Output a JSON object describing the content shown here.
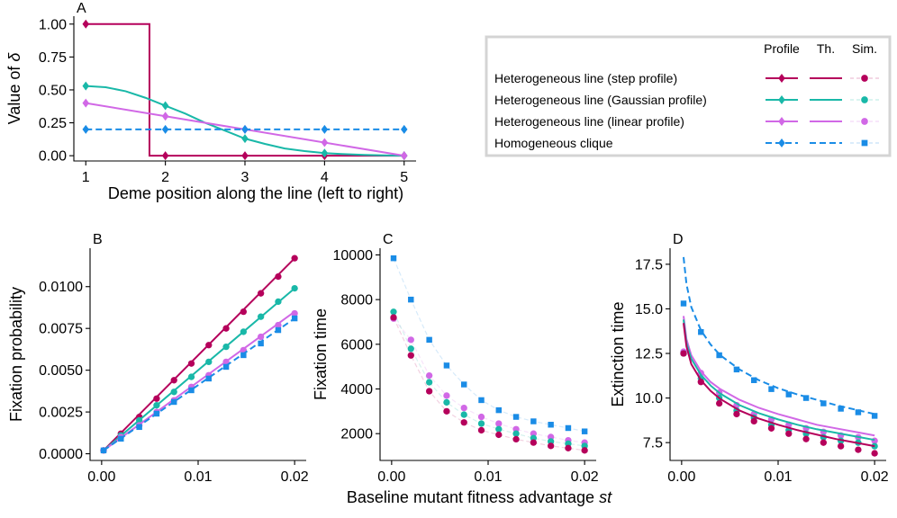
{
  "figure": {
    "shared_xlabel_prefix": "Baseline mutant fitness advantage ",
    "shared_xlabel_var": "st"
  },
  "legend": {
    "headers": [
      "Profile",
      "Th.",
      "Sim."
    ],
    "entries": [
      {
        "label": "Heterogeneous line (step profile)",
        "color": "#b5005b",
        "dash": "solid",
        "profile_marker": "diamond",
        "sim_marker": "circle"
      },
      {
        "label": "Heterogeneous line (Gaussian profile)",
        "color": "#19b8a8",
        "dash": "solid",
        "profile_marker": "diamond",
        "sim_marker": "circle"
      },
      {
        "label": "Heterogeneous line (linear profile)",
        "color": "#d168e6",
        "dash": "solid",
        "profile_marker": "diamond",
        "sim_marker": "circle"
      },
      {
        "label": "Homogeneous clique",
        "color": "#1a8ce6",
        "dash": "dashed",
        "profile_marker": "diamond",
        "sim_marker": "square"
      }
    ]
  },
  "chart_data": [
    {
      "panel": "A",
      "type": "line",
      "title": "",
      "xlabel": "Deme position along the line (left to right)",
      "ylabel": "Value of δ",
      "xlim": [
        0.85,
        5.15
      ],
      "ylim": [
        -0.04,
        1.06
      ],
      "xticks": [
        1,
        2,
        3,
        4,
        5
      ],
      "xtick_labels": [
        "1",
        "2",
        "3",
        "4",
        "5"
      ],
      "yticks": [
        0,
        0.25,
        0.5,
        0.75,
        1.0
      ],
      "ytick_labels": [
        "0.00",
        "0.25",
        "0.50",
        "0.75",
        "1.00"
      ],
      "series": [
        {
          "name": "Heterogeneous line (step profile)",
          "color": "#b5005b",
          "dash": "solid",
          "line_x": [
            1,
            1.8,
            1.8,
            5
          ],
          "line_y": [
            1.0,
            1.0,
            0.0,
            0.0
          ],
          "points_x": [
            1,
            2,
            3,
            4,
            5
          ],
          "points_y": [
            1.0,
            0.0,
            0.0,
            0.0,
            0.0
          ],
          "marker": "diamond"
        },
        {
          "name": "Heterogeneous line (Gaussian profile)",
          "color": "#19b8a8",
          "dash": "solid",
          "line_x": [
            1,
            1.25,
            1.5,
            1.75,
            2,
            2.25,
            2.5,
            2.75,
            3,
            3.25,
            3.5,
            3.75,
            4,
            4.25,
            4.5,
            4.75,
            5
          ],
          "line_y": [
            0.53,
            0.52,
            0.49,
            0.44,
            0.38,
            0.32,
            0.25,
            0.19,
            0.13,
            0.09,
            0.055,
            0.035,
            0.02,
            0.012,
            0.006,
            0.003,
            0.0
          ],
          "points_x": [
            1,
            2,
            3,
            4,
            5
          ],
          "points_y": [
            0.53,
            0.38,
            0.13,
            0.02,
            0.0
          ],
          "marker": "diamond"
        },
        {
          "name": "Heterogeneous line (linear profile)",
          "color": "#d168e6",
          "dash": "solid",
          "line_x": [
            1,
            5
          ],
          "line_y": [
            0.4,
            0.0
          ],
          "points_x": [
            1,
            2,
            3,
            4,
            5
          ],
          "points_y": [
            0.4,
            0.3,
            0.2,
            0.1,
            0.0
          ],
          "marker": "diamond"
        },
        {
          "name": "Homogeneous clique",
          "color": "#1a8ce6",
          "dash": "dashed",
          "line_x": [
            1,
            5
          ],
          "line_y": [
            0.2,
            0.2
          ],
          "points_x": [
            1,
            2,
            3,
            4,
            5
          ],
          "points_y": [
            0.2,
            0.2,
            0.2,
            0.2,
            0.2
          ],
          "marker": "diamond"
        }
      ]
    },
    {
      "panel": "B",
      "type": "line",
      "xlabel": "",
      "ylabel": "Fixation probability",
      "xlim": [
        -0.0012,
        0.0212
      ],
      "ylim": [
        -0.0004,
        0.0123
      ],
      "xticks": [
        0,
        0.01,
        0.02
      ],
      "xtick_labels": [
        "0.00",
        "0.01",
        "0.02"
      ],
      "yticks": [
        0,
        0.0025,
        0.005,
        0.0075,
        0.01
      ],
      "ytick_labels": [
        "0.0000",
        "0.0025",
        "0.0050",
        "0.0075",
        "0.0100"
      ],
      "sim_x": [
        0.0002,
        0.002,
        0.0039,
        0.0057,
        0.0075,
        0.0093,
        0.0111,
        0.0129,
        0.0147,
        0.0165,
        0.0183,
        0.02
      ],
      "series": [
        {
          "name": "Heterogeneous line (step profile)",
          "color": "#b5005b",
          "dash": "solid",
          "sim_marker": "circle",
          "theory_x": [
            0.0002,
            0.02
          ],
          "theory_y": [
            0.0002,
            0.0117
          ],
          "sim_y": [
            0.0002,
            0.0012,
            0.0022,
            0.0033,
            0.0044,
            0.0054,
            0.0065,
            0.0075,
            0.0085,
            0.0096,
            0.0106,
            0.0117
          ]
        },
        {
          "name": "Heterogeneous line (Gaussian profile)",
          "color": "#19b8a8",
          "dash": "solid",
          "sim_marker": "circle",
          "theory_x": [
            0.0002,
            0.02
          ],
          "theory_y": [
            0.0002,
            0.0099
          ],
          "sim_y": [
            0.0002,
            0.0011,
            0.002,
            0.0029,
            0.0037,
            0.0046,
            0.0055,
            0.0064,
            0.0073,
            0.0082,
            0.0091,
            0.0099
          ]
        },
        {
          "name": "Heterogeneous line (linear profile)",
          "color": "#d168e6",
          "dash": "solid",
          "sim_marker": "circle",
          "theory_x": [
            0.0002,
            0.02
          ],
          "theory_y": [
            0.0002,
            0.0085
          ],
          "sim_y": [
            0.0002,
            0.001,
            0.0017,
            0.0025,
            0.0032,
            0.004,
            0.0047,
            0.0055,
            0.0062,
            0.007,
            0.0077,
            0.0084
          ]
        },
        {
          "name": "Homogeneous clique",
          "color": "#1a8ce6",
          "dash": "dashed",
          "sim_marker": "square",
          "theory_x": [
            0.0002,
            0.02
          ],
          "theory_y": [
            0.0002,
            0.0081
          ],
          "sim_y": [
            0.0002,
            0.0009,
            0.0016,
            0.0024,
            0.0031,
            0.0038,
            0.0045,
            0.0052,
            0.0059,
            0.0066,
            0.0074,
            0.0081
          ]
        }
      ]
    },
    {
      "panel": "C",
      "type": "scatter",
      "xlabel": "",
      "ylabel": "Fixation time",
      "xlim": [
        -0.0012,
        0.0212
      ],
      "ylim": [
        800,
        10300
      ],
      "xticks": [
        0,
        0.01,
        0.02
      ],
      "xtick_labels": [
        "0.00",
        "0.01",
        "0.02"
      ],
      "yticks": [
        2000,
        4000,
        6000,
        8000,
        10000
      ],
      "ytick_labels": [
        "2000",
        "4000",
        "6000",
        "8000",
        "10000"
      ],
      "sim_x": [
        0.0002,
        0.002,
        0.0039,
        0.0057,
        0.0075,
        0.0093,
        0.0111,
        0.0129,
        0.0147,
        0.0165,
        0.0183,
        0.02
      ],
      "series": [
        {
          "name": "Homogeneous clique",
          "color": "#1a8ce6",
          "sim_marker": "square",
          "sim_y": [
            9850,
            8000,
            6200,
            5050,
            4200,
            3500,
            3050,
            2750,
            2550,
            2400,
            2250,
            2100
          ]
        },
        {
          "name": "Heterogeneous line (linear profile)",
          "color": "#d168e6",
          "sim_marker": "circle",
          "sim_y": [
            7150,
            6200,
            4600,
            3700,
            3150,
            2750,
            2450,
            2200,
            2000,
            1850,
            1700,
            1600
          ]
        },
        {
          "name": "Heterogeneous line (Gaussian profile)",
          "color": "#19b8a8",
          "sim_marker": "circle",
          "sim_y": [
            7450,
            5800,
            4300,
            3400,
            2850,
            2450,
            2200,
            2000,
            1800,
            1650,
            1550,
            1450
          ]
        },
        {
          "name": "Heterogeneous line (step profile)",
          "color": "#b5005b",
          "sim_marker": "circle",
          "sim_y": [
            7200,
            5500,
            3900,
            3000,
            2500,
            2150,
            1950,
            1750,
            1600,
            1450,
            1350,
            1250
          ]
        }
      ]
    },
    {
      "panel": "D",
      "type": "line",
      "xlabel": "",
      "ylabel": "Extinction time",
      "xlim": [
        -0.0012,
        0.0212
      ],
      "ylim": [
        6.5,
        18.4
      ],
      "xticks": [
        0,
        0.01,
        0.02
      ],
      "xtick_labels": [
        "0.00",
        "0.01",
        "0.02"
      ],
      "yticks": [
        7.5,
        10,
        12.5,
        15,
        17.5
      ],
      "ytick_labels": [
        "7.5",
        "10.0",
        "12.5",
        "15.0",
        "17.5"
      ],
      "sim_x": [
        0.0002,
        0.002,
        0.0039,
        0.0057,
        0.0075,
        0.0093,
        0.0111,
        0.0129,
        0.0147,
        0.0165,
        0.0183,
        0.02
      ],
      "series": [
        {
          "name": "Homogeneous clique",
          "color": "#1a8ce6",
          "dash": "dashed",
          "sim_marker": "square",
          "theory_x": [
            0.0002,
            0.0005,
            0.001,
            0.002,
            0.003,
            0.004,
            0.006,
            0.008,
            0.01,
            0.012,
            0.014,
            0.016,
            0.018,
            0.02
          ],
          "theory_y": [
            17.9,
            16.4,
            15.1,
            13.8,
            13.0,
            12.4,
            11.6,
            11.0,
            10.55,
            10.2,
            9.9,
            9.6,
            9.35,
            9.1
          ],
          "sim_y": [
            15.3,
            13.7,
            12.4,
            11.6,
            11.0,
            10.5,
            10.2,
            10.0,
            9.7,
            9.4,
            9.2,
            9.0
          ]
        },
        {
          "name": "Heterogeneous line (linear profile)",
          "color": "#d168e6",
          "dash": "solid",
          "sim_marker": "circle",
          "theory_x": [
            0.0002,
            0.0005,
            0.001,
            0.002,
            0.003,
            0.004,
            0.006,
            0.008,
            0.01,
            0.012,
            0.014,
            0.016,
            0.018,
            0.02
          ],
          "theory_y": [
            14.6,
            13.3,
            12.4,
            11.5,
            10.9,
            10.5,
            9.9,
            9.45,
            9.1,
            8.8,
            8.5,
            8.3,
            8.1,
            7.9
          ],
          "sim_y": [
            12.6,
            11.4,
            10.3,
            9.6,
            9.1,
            8.8,
            8.5,
            8.3,
            8.1,
            7.9,
            7.8,
            7.6
          ]
        },
        {
          "name": "Heterogeneous line (Gaussian profile)",
          "color": "#19b8a8",
          "dash": "solid",
          "sim_marker": "circle",
          "theory_x": [
            0.0002,
            0.0005,
            0.001,
            0.002,
            0.003,
            0.004,
            0.006,
            0.008,
            0.01,
            0.012,
            0.014,
            0.016,
            0.018,
            0.02
          ],
          "theory_y": [
            14.4,
            13.1,
            12.2,
            11.3,
            10.7,
            10.25,
            9.6,
            9.15,
            8.8,
            8.5,
            8.25,
            8.05,
            7.85,
            7.65
          ],
          "sim_y": [
            12.5,
            11.1,
            10.0,
            9.3,
            8.9,
            8.5,
            8.2,
            8.0,
            7.8,
            7.6,
            7.5,
            7.3
          ]
        },
        {
          "name": "Heterogeneous line (step profile)",
          "color": "#b5005b",
          "dash": "solid",
          "sim_marker": "circle",
          "theory_x": [
            0.0002,
            0.0005,
            0.001,
            0.002,
            0.003,
            0.004,
            0.006,
            0.008,
            0.01,
            0.012,
            0.014,
            0.016,
            0.018,
            0.02
          ],
          "theory_y": [
            14.2,
            12.9,
            11.9,
            11.0,
            10.4,
            9.95,
            9.3,
            8.85,
            8.5,
            8.2,
            7.95,
            7.7,
            7.5,
            7.3
          ],
          "sim_y": [
            12.5,
            10.9,
            9.7,
            9.1,
            8.7,
            8.3,
            8.0,
            7.7,
            7.5,
            7.3,
            7.1,
            6.9
          ]
        }
      ]
    }
  ]
}
